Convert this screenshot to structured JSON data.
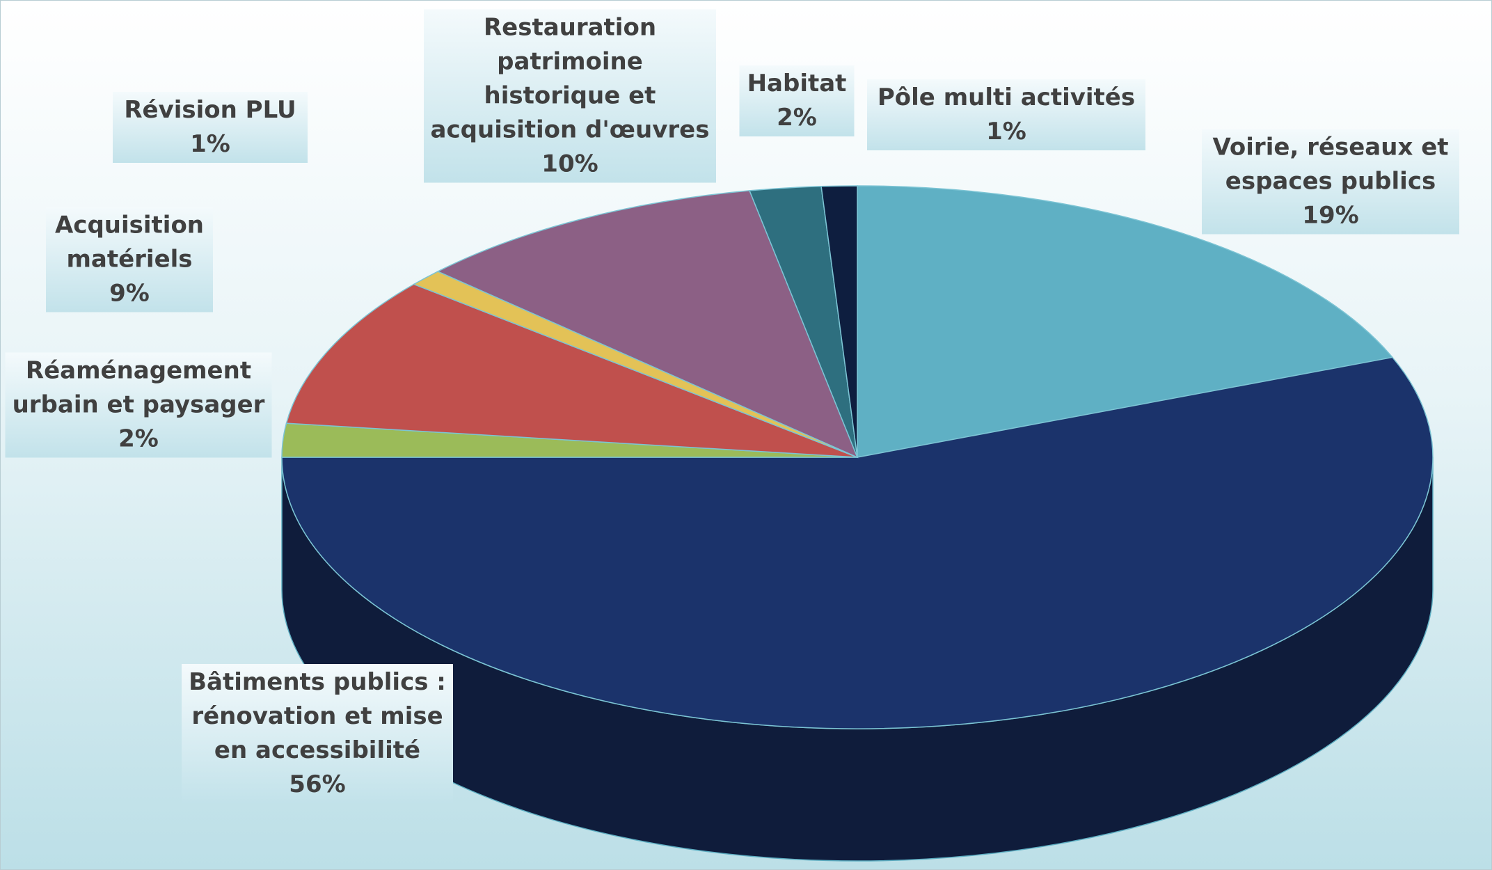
{
  "chart_data": {
    "type": "pie3d",
    "categories": [
      "Voirie, réseaux et espaces publics",
      "Bâtiments publics : rénovation et mise en accessibilité",
      "Réaménagement urbain et paysager",
      "Acquisition matériels",
      "Révision PLU",
      "Restauration patrimoine historique et acquisition d'œuvres",
      "Habitat",
      "Pôle multi activités"
    ],
    "values": [
      19,
      56,
      2,
      9,
      1,
      10,
      2,
      1
    ],
    "value_labels": [
      "19%",
      "56%",
      "2%",
      "9%",
      "1%",
      "10%",
      "2%",
      "1%"
    ],
    "colors": [
      "#5fb0c4",
      "#1b336b",
      "#9bbb59",
      "#c0504d",
      "#e3c257",
      "#8c6085",
      "#2e6f7f",
      "#0e1e3f"
    ]
  }
}
